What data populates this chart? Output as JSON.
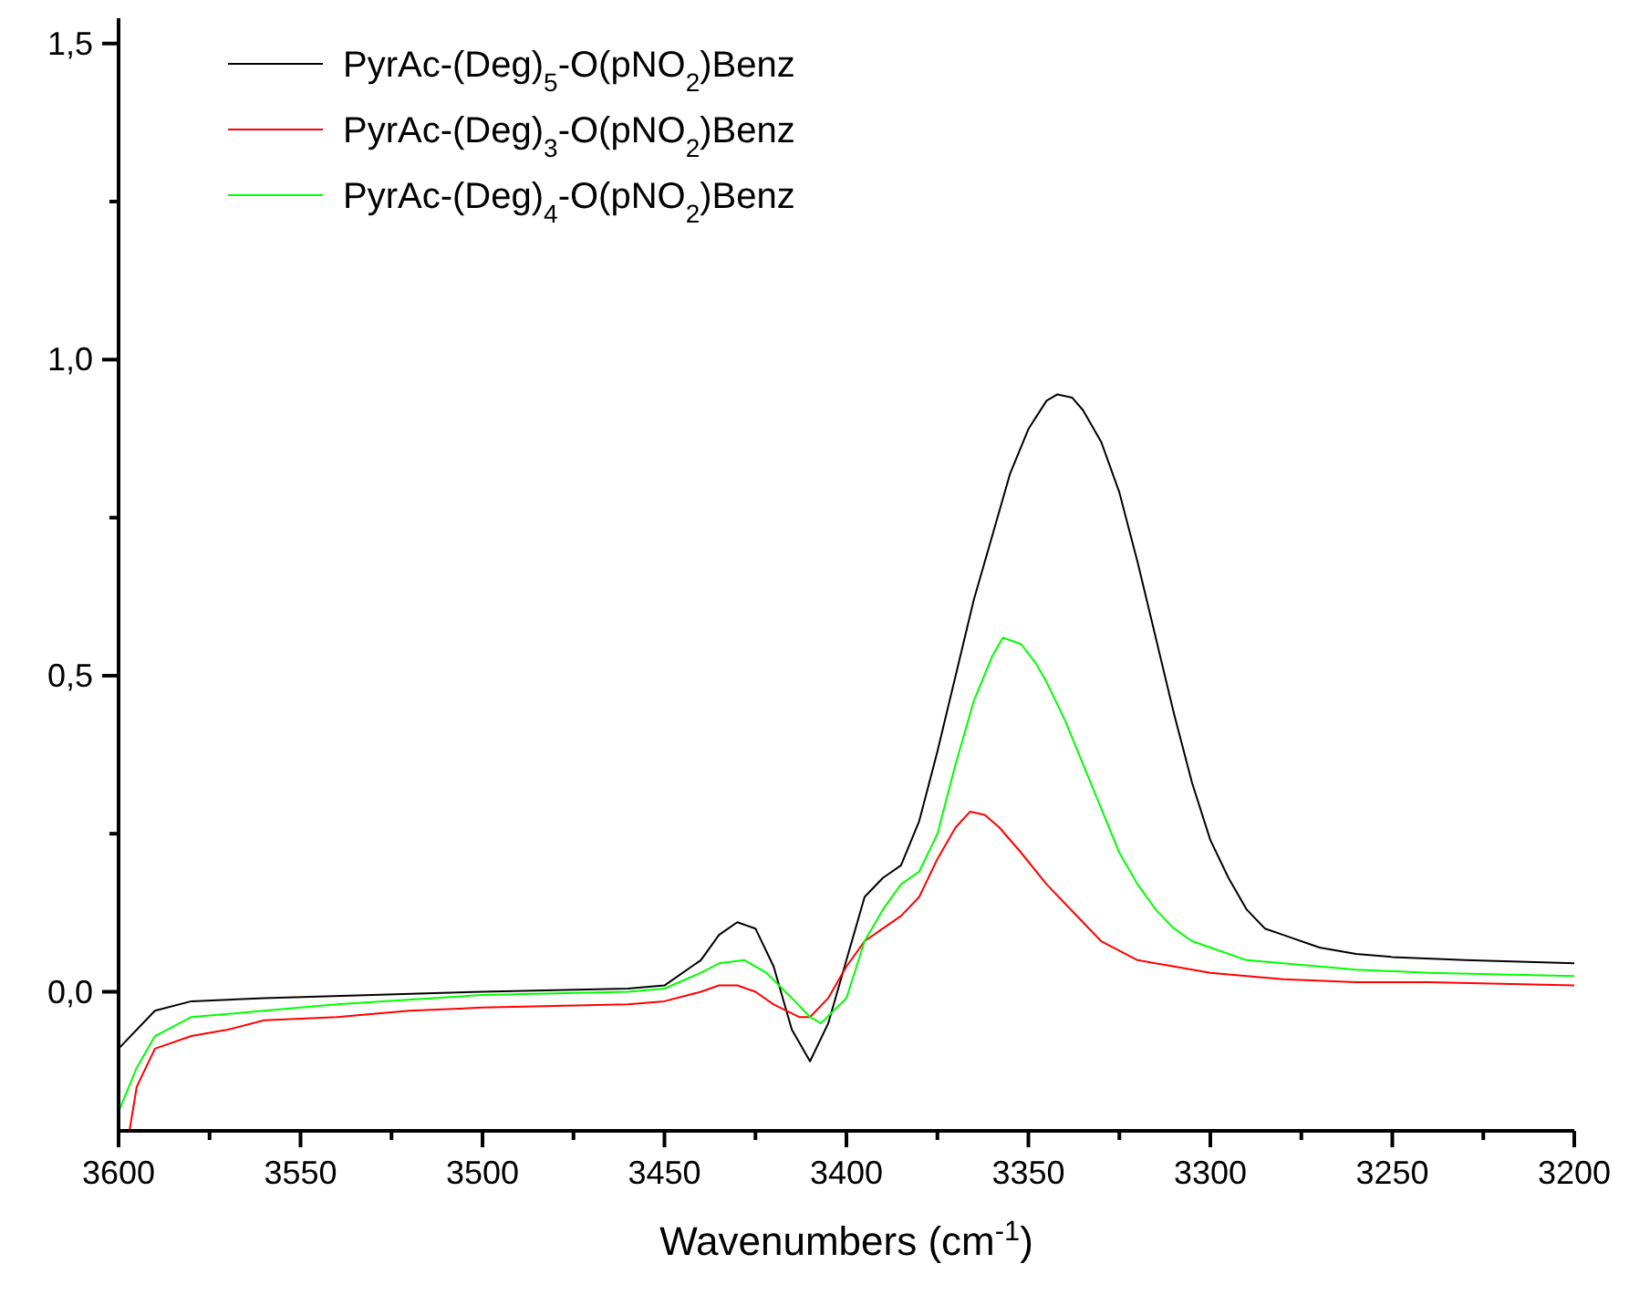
{
  "chart_data": {
    "type": "line",
    "xlabel": "Wavenumbers (cm$^{-1}$)",
    "legend": "top left",
    "xlim": [
      3600,
      3200
    ],
    "ylim": [
      -0.22,
      1.54
    ],
    "xticks": [
      3600,
      {
        "value": 3575,
        "label": null
      },
      3550,
      {
        "value": 3525,
        "label": null
      },
      3500,
      {
        "value": 3475,
        "label": null
      },
      3450,
      {
        "value": 3425,
        "label": null
      },
      3400,
      {
        "value": 3375,
        "label": null
      },
      3350,
      {
        "value": 3325,
        "label": null
      },
      3300,
      {
        "value": 3275,
        "label": null
      },
      3250,
      {
        "value": 3225,
        "label": null
      },
      3200
    ],
    "yticks": [
      {
        "value": 0,
        "label": "0,0"
      },
      {
        "value": 0.25,
        "label": null
      },
      {
        "value": 0.5,
        "label": "0,5"
      },
      {
        "value": 0.75,
        "label": null
      },
      {
        "value": 1,
        "label": "1,0"
      },
      {
        "value": 1.25,
        "label": null
      },
      {
        "value": 1.5,
        "label": "1,5"
      }
    ],
    "series": [
      {
        "name": "PyrAc-(Deg)$_{5}$-O(pNO$_{2}$)Benz",
        "color": "#000000",
        "x": [
          3600,
          3590,
          3580,
          3560,
          3500,
          3460,
          3450,
          3440,
          3435,
          3430,
          3425,
          3420,
          3415,
          3410,
          3405,
          3400,
          3395,
          3390,
          3385,
          3380,
          3375,
          3370,
          3365,
          3360,
          3355,
          3350,
          3345,
          3342,
          3338,
          3335,
          3330,
          3325,
          3320,
          3315,
          3310,
          3305,
          3300,
          3295,
          3290,
          3285,
          3280,
          3270,
          3260,
          3250,
          3230,
          3200
        ],
        "values": [
          -0.09,
          -0.03,
          -0.015,
          -0.01,
          0,
          0.005,
          0.01,
          0.05,
          0.09,
          0.11,
          0.1,
          0.04,
          -0.06,
          -0.11,
          -0.05,
          0.05,
          0.15,
          0.18,
          0.2,
          0.27,
          0.38,
          0.5,
          0.62,
          0.72,
          0.82,
          0.89,
          0.935,
          0.945,
          0.94,
          0.92,
          0.87,
          0.79,
          0.68,
          0.56,
          0.44,
          0.33,
          0.24,
          0.18,
          0.13,
          0.1,
          0.09,
          0.07,
          0.06,
          0.055,
          0.05,
          0.045
        ]
      },
      {
        "name": "PyrAc-(Deg)$_{3}$-O(pNO$_{2}$)Benz",
        "color": "#ff0000",
        "x": [
          3597,
          3595,
          3590,
          3580,
          3570,
          3560,
          3540,
          3520,
          3500,
          3460,
          3450,
          3440,
          3435,
          3430,
          3425,
          3420,
          3413,
          3410,
          3405,
          3400,
          3395,
          3390,
          3385,
          3380,
          3375,
          3370,
          3366,
          3362,
          3358,
          3352,
          3345,
          3340,
          3335,
          3330,
          3320,
          3310,
          3300,
          3280,
          3260,
          3240,
          3200
        ],
        "values": [
          -0.22,
          -0.15,
          -0.09,
          -0.07,
          -0.06,
          -0.045,
          -0.04,
          -0.03,
          -0.025,
          -0.02,
          -0.015,
          0,
          0.01,
          0.01,
          0,
          -0.02,
          -0.04,
          -0.04,
          -0.01,
          0.04,
          0.08,
          0.1,
          0.12,
          0.15,
          0.21,
          0.26,
          0.285,
          0.28,
          0.26,
          0.22,
          0.17,
          0.14,
          0.11,
          0.08,
          0.05,
          0.04,
          0.03,
          0.02,
          0.015,
          0.015,
          0.01
        ]
      },
      {
        "name": "PyrAc-(Deg)$_{4}$-O(pNO$_{2}$)Benz",
        "color": "#00ff00",
        "x": [
          3600,
          3595,
          3590,
          3580,
          3560,
          3540,
          3500,
          3460,
          3450,
          3440,
          3435,
          3428,
          3422,
          3415,
          3410,
          3407,
          3400,
          3395,
          3390,
          3385,
          3380,
          3375,
          3370,
          3365,
          3360,
          3357,
          3352,
          3348,
          3345,
          3340,
          3335,
          3330,
          3325,
          3320,
          3315,
          3310,
          3305,
          3300,
          3290,
          3280,
          3260,
          3240,
          3200
        ],
        "values": [
          -0.19,
          -0.12,
          -0.07,
          -0.04,
          -0.03,
          -0.02,
          -0.005,
          0,
          0.005,
          0.03,
          0.045,
          0.05,
          0.03,
          -0.01,
          -0.04,
          -0.05,
          -0.01,
          0.08,
          0.13,
          0.17,
          0.19,
          0.25,
          0.36,
          0.46,
          0.53,
          0.56,
          0.55,
          0.52,
          0.49,
          0.43,
          0.36,
          0.29,
          0.22,
          0.17,
          0.13,
          0.1,
          0.08,
          0.07,
          0.05,
          0.045,
          0.035,
          0.03,
          0.025
        ]
      }
    ]
  }
}
